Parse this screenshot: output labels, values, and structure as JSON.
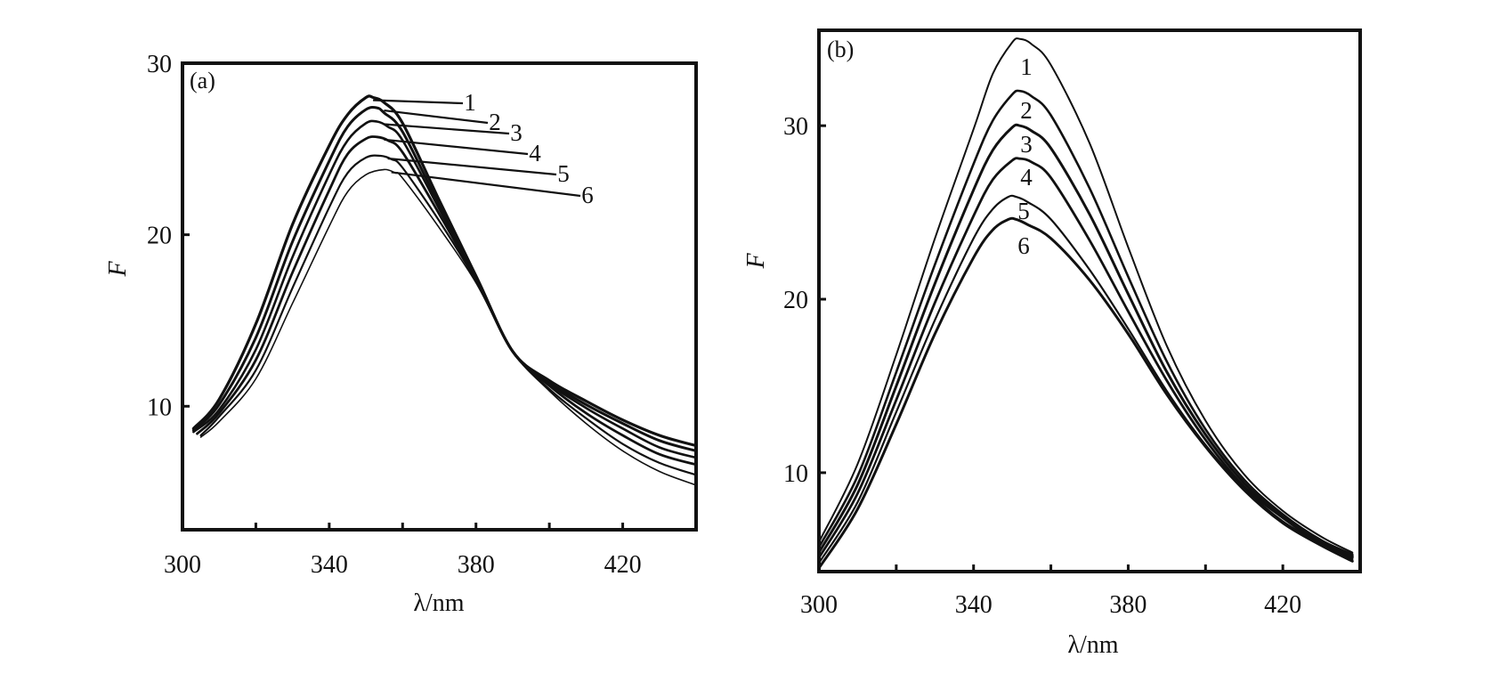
{
  "chart_data": [
    {
      "type": "line",
      "panel_label": "(a)",
      "xlabel": "λ/nm",
      "ylabel": "F",
      "xlim": [
        300,
        440
      ],
      "ylim": [
        2.8,
        30
      ],
      "x_tick_labels": [
        "300",
        "340",
        "380",
        "420"
      ],
      "y_tick_labels": [
        "10",
        "20",
        "30"
      ],
      "x_ticks": [
        300,
        320,
        340,
        360,
        380,
        400,
        420
      ],
      "y_ticks": [
        10,
        20,
        30
      ],
      "grid": false,
      "legend": "curve numbers with leader lines, upper right of peaks",
      "series": [
        {
          "name": "1",
          "x": [
            303,
            310,
            320,
            330,
            340,
            345,
            350,
            352,
            355,
            360,
            370,
            380,
            390,
            400,
            410,
            420,
            430,
            440
          ],
          "y": [
            8.7,
            10.4,
            14.8,
            20.6,
            25.2,
            27.0,
            28.0,
            28.0,
            27.7,
            26.5,
            22.0,
            17.6,
            13.2,
            11.5,
            10.3,
            9.2,
            8.3,
            7.7
          ]
        },
        {
          "name": "2",
          "x": [
            303,
            310,
            320,
            330,
            340,
            345,
            350,
            353,
            355,
            360,
            370,
            380,
            390,
            400,
            410,
            420,
            430,
            440
          ],
          "y": [
            8.6,
            10.1,
            14.0,
            19.6,
            24.3,
            26.3,
            27.3,
            27.4,
            27.1,
            26.0,
            21.7,
            17.6,
            13.2,
            11.4,
            10.1,
            9.0,
            8.0,
            7.4
          ]
        },
        {
          "name": "3",
          "x": [
            303,
            310,
            320,
            330,
            340,
            345,
            350,
            353,
            356,
            360,
            370,
            380,
            390,
            400,
            410,
            420,
            430,
            440
          ],
          "y": [
            8.5,
            9.8,
            13.3,
            18.7,
            23.5,
            25.5,
            26.5,
            26.6,
            26.3,
            25.5,
            21.5,
            17.5,
            13.2,
            11.3,
            9.9,
            8.7,
            7.6,
            7.0
          ]
        },
        {
          "name": "4",
          "x": [
            304,
            310,
            320,
            330,
            340,
            345,
            350,
            353,
            356,
            360,
            370,
            380,
            390,
            400,
            410,
            420,
            430,
            440
          ],
          "y": [
            8.4,
            9.6,
            12.7,
            17.8,
            22.6,
            24.7,
            25.6,
            25.7,
            25.5,
            24.8,
            21.2,
            17.4,
            13.2,
            11.2,
            9.6,
            8.3,
            7.2,
            6.6
          ]
        },
        {
          "name": "5",
          "x": [
            305,
            310,
            320,
            330,
            340,
            345,
            350,
            354,
            357,
            360,
            370,
            380,
            390,
            400,
            410,
            420,
            430,
            440
          ],
          "y": [
            8.3,
            9.4,
            12.1,
            16.9,
            21.6,
            23.6,
            24.5,
            24.6,
            24.4,
            23.9,
            20.8,
            17.3,
            13.2,
            11.0,
            9.3,
            7.8,
            6.7,
            6.0
          ]
        },
        {
          "name": "6",
          "x": [
            305,
            310,
            320,
            330,
            340,
            345,
            350,
            355,
            358,
            360,
            370,
            380,
            390,
            400,
            410,
            420,
            430,
            440
          ],
          "y": [
            8.2,
            9.1,
            11.6,
            16.0,
            20.5,
            22.5,
            23.5,
            23.8,
            23.6,
            23.3,
            20.4,
            17.2,
            13.2,
            10.9,
            9.0,
            7.4,
            6.2,
            5.4
          ]
        }
      ]
    },
    {
      "type": "line",
      "panel_label": "(b)",
      "xlabel": "λ/nm",
      "ylabel": "F",
      "xlim": [
        300,
        440
      ],
      "ylim": [
        4.3,
        35.5
      ],
      "x_tick_labels": [
        "300",
        "340",
        "380",
        "420"
      ],
      "y_tick_labels": [
        "10",
        "20",
        "30"
      ],
      "x_ticks": [
        300,
        320,
        340,
        360,
        380,
        400,
        420
      ],
      "y_ticks": [
        10,
        20,
        30
      ],
      "grid": false,
      "legend": "curve numbers stacked beneath the peak maxima",
      "series": [
        {
          "name": "1",
          "x": [
            300,
            310,
            320,
            330,
            340,
            345,
            350,
            352,
            355,
            360,
            370,
            380,
            390,
            400,
            410,
            420,
            430,
            438
          ],
          "y": [
            6.0,
            10.5,
            16.8,
            23.5,
            29.8,
            33.0,
            34.8,
            35.0,
            34.7,
            33.5,
            29.0,
            23.0,
            17.3,
            13.0,
            9.9,
            7.8,
            6.3,
            5.4
          ]
        },
        {
          "name": "2",
          "x": [
            300,
            310,
            320,
            330,
            340,
            345,
            350,
            352,
            355,
            360,
            370,
            380,
            390,
            400,
            410,
            420,
            430,
            438
          ],
          "y": [
            5.7,
            9.8,
            15.8,
            22.0,
            27.8,
            30.3,
            31.8,
            32.0,
            31.7,
            30.6,
            26.4,
            21.3,
            16.4,
            12.5,
            9.6,
            7.6,
            6.1,
            5.3
          ]
        },
        {
          "name": "3",
          "x": [
            300,
            310,
            320,
            330,
            340,
            345,
            350,
            352,
            355,
            360,
            370,
            380,
            390,
            400,
            410,
            420,
            430,
            438
          ],
          "y": [
            5.4,
            9.3,
            15.0,
            20.9,
            26.3,
            28.6,
            29.9,
            30.0,
            29.7,
            28.7,
            24.9,
            20.3,
            15.8,
            12.2,
            9.4,
            7.5,
            6.0,
            5.2
          ]
        },
        {
          "name": "4",
          "x": [
            300,
            310,
            320,
            330,
            340,
            345,
            350,
            352,
            355,
            360,
            370,
            380,
            390,
            400,
            410,
            420,
            430,
            438
          ],
          "y": [
            5.1,
            8.8,
            14.2,
            19.8,
            24.8,
            26.9,
            28.0,
            28.1,
            27.9,
            27.0,
            23.4,
            19.3,
            15.3,
            11.9,
            9.2,
            7.4,
            5.9,
            5.1
          ]
        },
        {
          "name": "5",
          "x": [
            300,
            310,
            320,
            330,
            340,
            345,
            349,
            351,
            354,
            360,
            370,
            380,
            390,
            400,
            410,
            420,
            430,
            438
          ],
          "y": [
            4.8,
            8.3,
            13.5,
            18.8,
            23.5,
            25.2,
            25.9,
            25.9,
            25.6,
            24.6,
            21.7,
            18.3,
            14.7,
            11.6,
            9.1,
            7.2,
            5.9,
            5.0
          ]
        },
        {
          "name": "6",
          "x": [
            300,
            310,
            320,
            330,
            340,
            345,
            349,
            351,
            354,
            360,
            370,
            380,
            390,
            400,
            410,
            420,
            430,
            438
          ],
          "y": [
            4.5,
            7.9,
            12.8,
            18.0,
            22.4,
            24.0,
            24.6,
            24.6,
            24.3,
            23.5,
            21.1,
            18.0,
            14.5,
            11.5,
            9.0,
            7.1,
            5.8,
            4.9
          ]
        }
      ]
    }
  ]
}
